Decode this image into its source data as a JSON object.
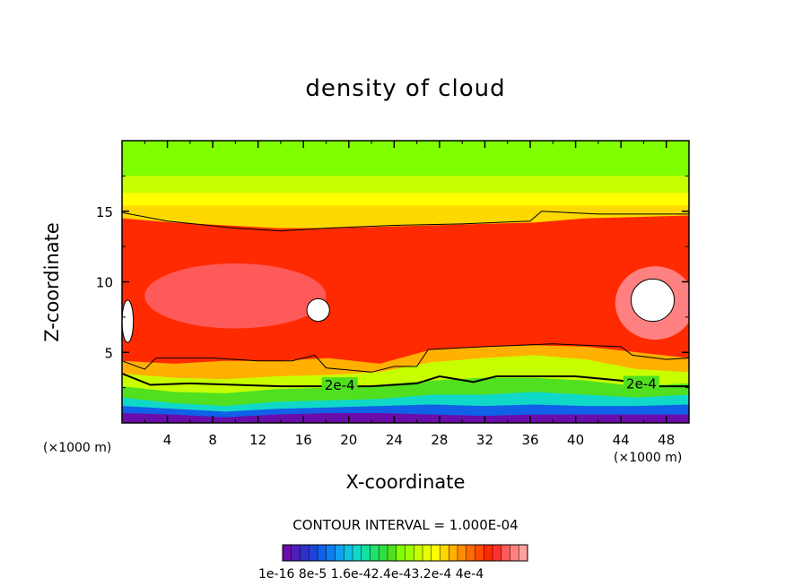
{
  "chart_data": {
    "type": "heatmap",
    "title": "density of cloud",
    "xlabel": "X-coordinate",
    "ylabel": "Z-coordinate",
    "x_unit": "(×1000 m)",
    "z_unit": "(×1000 m)",
    "xlim": [
      0,
      50
    ],
    "ylim": [
      0,
      20
    ],
    "xticks": [
      4,
      8,
      12,
      16,
      20,
      24,
      28,
      32,
      36,
      40,
      44,
      48
    ],
    "yticks": [
      5,
      10,
      15
    ],
    "contour_interval_label": "CONTOUR INTERVAL = 1.000E-04",
    "contour_label": "2e-4",
    "colorbar_labels": "1e-16  8e-5  1.6e-42.4e-43.2e-4  4e-4",
    "colorbar_colors": [
      "#6a0daa",
      "#4b1fb8",
      "#3030c8",
      "#2044d8",
      "#1060e8",
      "#0a80f0",
      "#10a0f0",
      "#10c0e0",
      "#10d8c8",
      "#10e0a0",
      "#20e070",
      "#30e040",
      "#50e020",
      "#80ff00",
      "#a0ff00",
      "#c8ff00",
      "#e8ff00",
      "#ffff00",
      "#ffd800",
      "#ffb000",
      "#ff8c00",
      "#ff6a00",
      "#ff4a00",
      "#ff2a00",
      "#ff3030",
      "#ff5a5a",
      "#ff8080",
      "#ffa0a0"
    ],
    "layers": [
      {
        "level": "0",
        "color": "#6a0daa",
        "z_top": [
          0.7,
          0.6,
          0.4,
          0.6,
          0.7,
          0.7,
          0.6,
          0.5,
          0.6,
          0.6,
          0.6,
          0.6
        ]
      },
      {
        "level": "0.4e-4",
        "color": "#1060e8",
        "z_top": [
          1.2,
          1.0,
          0.8,
          1.0,
          1.1,
          1.2,
          1.3,
          1.2,
          1.3,
          1.2,
          1.2,
          1.3
        ]
      },
      {
        "level": "0.8e-4",
        "color": "#10d8c8",
        "z_top": [
          1.8,
          1.4,
          1.2,
          1.5,
          1.6,
          1.7,
          2.0,
          2.0,
          2.2,
          2.0,
          1.8,
          2.0
        ]
      },
      {
        "level": "1.2e-4",
        "color": "#50e020",
        "z_top": [
          2.6,
          2.2,
          2.1,
          2.4,
          2.5,
          2.7,
          3.0,
          3.2,
          3.2,
          3.0,
          2.6,
          2.8
        ]
      },
      {
        "level": "1.6e-4",
        "color": "#c8ff00",
        "z_top": [
          3.5,
          3.2,
          3.1,
          3.3,
          3.4,
          3.6,
          4.3,
          4.6,
          4.8,
          4.5,
          3.8,
          3.6
        ]
      },
      {
        "level": "2.4e-4",
        "color": "#ffb000",
        "z_top": [
          4.4,
          4.2,
          4.4,
          4.4,
          4.6,
          4.2,
          5.2,
          5.4,
          5.5,
          5.4,
          5.0,
          4.6
        ]
      },
      {
        "level": "3.0e-4",
        "color": "#ff2a00",
        "z_top": [
          14.5,
          14.2,
          14.0,
          13.8,
          13.8,
          13.9,
          14.0,
          14.1,
          14.2,
          14.5,
          14.6,
          14.7
        ]
      }
    ],
    "contour_2e4": [
      [
        0,
        3.5
      ],
      [
        2.5,
        2.7
      ],
      [
        6,
        2.8
      ],
      [
        10,
        2.7
      ],
      [
        14,
        2.6
      ],
      [
        18,
        2.6
      ],
      [
        22,
        2.6
      ],
      [
        26,
        2.8
      ],
      [
        28,
        3.3
      ],
      [
        31,
        2.9
      ],
      [
        33,
        3.3
      ],
      [
        40,
        3.3
      ],
      [
        44,
        3.0
      ],
      [
        47,
        2.6
      ],
      [
        50,
        2.6
      ]
    ],
    "contour_top": [
      [
        0,
        14.9
      ],
      [
        4,
        14.3
      ],
      [
        10,
        13.8
      ],
      [
        14,
        13.6
      ],
      [
        18,
        13.8
      ],
      [
        24,
        14.0
      ],
      [
        30,
        14.1
      ],
      [
        36,
        14.3
      ],
      [
        37,
        15.0
      ],
      [
        42,
        14.8
      ],
      [
        50,
        14.8
      ]
    ],
    "contour_mid": [
      [
        0,
        4.4
      ],
      [
        2,
        3.8
      ],
      [
        3,
        4.6
      ],
      [
        8,
        4.6
      ],
      [
        12,
        4.4
      ],
      [
        15,
        4.4
      ],
      [
        17,
        4.8
      ],
      [
        18,
        3.9
      ],
      [
        22,
        3.6
      ],
      [
        24,
        4.0
      ],
      [
        26,
        4.0
      ],
      [
        27,
        5.2
      ],
      [
        32,
        5.4
      ],
      [
        38,
        5.6
      ],
      [
        44,
        5.4
      ],
      [
        45,
        4.8
      ],
      [
        48,
        4.5
      ],
      [
        50,
        4.6
      ]
    ],
    "white_regions": [
      {
        "cx": 46.8,
        "cz": 8.7,
        "rx": 1.9,
        "rz": 1.5
      },
      {
        "cx": 17.3,
        "cz": 8.0,
        "rx": 1.0,
        "rz": 0.8
      },
      {
        "cx": 0.5,
        "cz": 7.2,
        "rx": 0.5,
        "rz": 1.5
      }
    ]
  }
}
